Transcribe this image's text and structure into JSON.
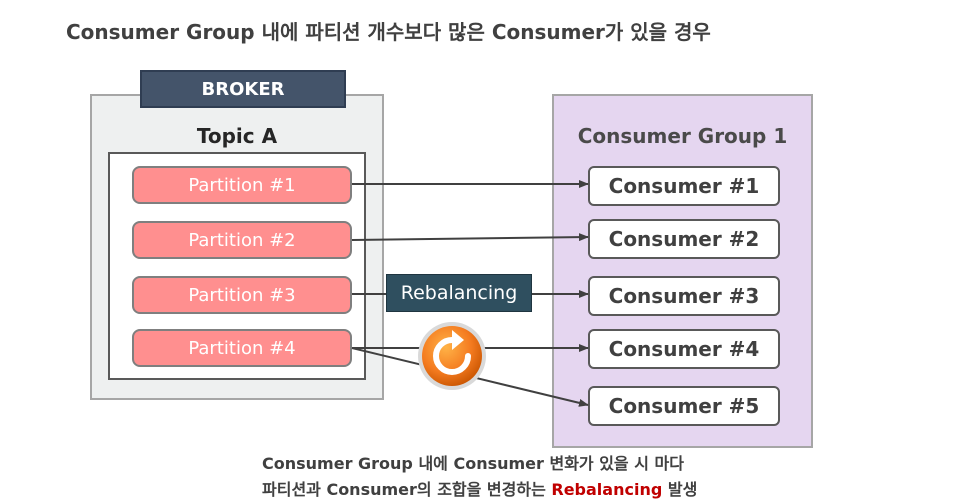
{
  "title": "Consumer Group 내에 파티션 개수보다 많은 Consumer가 있을 경우",
  "broker": {
    "label": "BROKER",
    "topic": "Topic A",
    "partitions": [
      "Partition #1",
      "Partition #2",
      "Partition #3",
      "Partition #4"
    ]
  },
  "consumer_group": {
    "label": "Consumer Group 1",
    "consumers": [
      "Consumer #1",
      "Consumer #2",
      "Consumer #3",
      "Consumer #4",
      "Consumer #5"
    ]
  },
  "rebalancing_label": "Rebalancing",
  "caption": {
    "line1": "Consumer Group 내에 Consumer 변화가 있을 시 마다",
    "line2_prefix": "파티션과 Consumer의 조합을 변경하는 ",
    "line2_highlight": "Rebalancing",
    "line2_suffix": " 발생"
  },
  "colors": {
    "broker_header": "#44546a",
    "partition_fill": "#ff8f8f",
    "group_fill": "#e5d6f0",
    "rebalance_tag": "#2f4f5f",
    "icon_orange": "#f47b20",
    "highlight": "#c00000"
  },
  "icons": [
    "refresh-icon"
  ]
}
